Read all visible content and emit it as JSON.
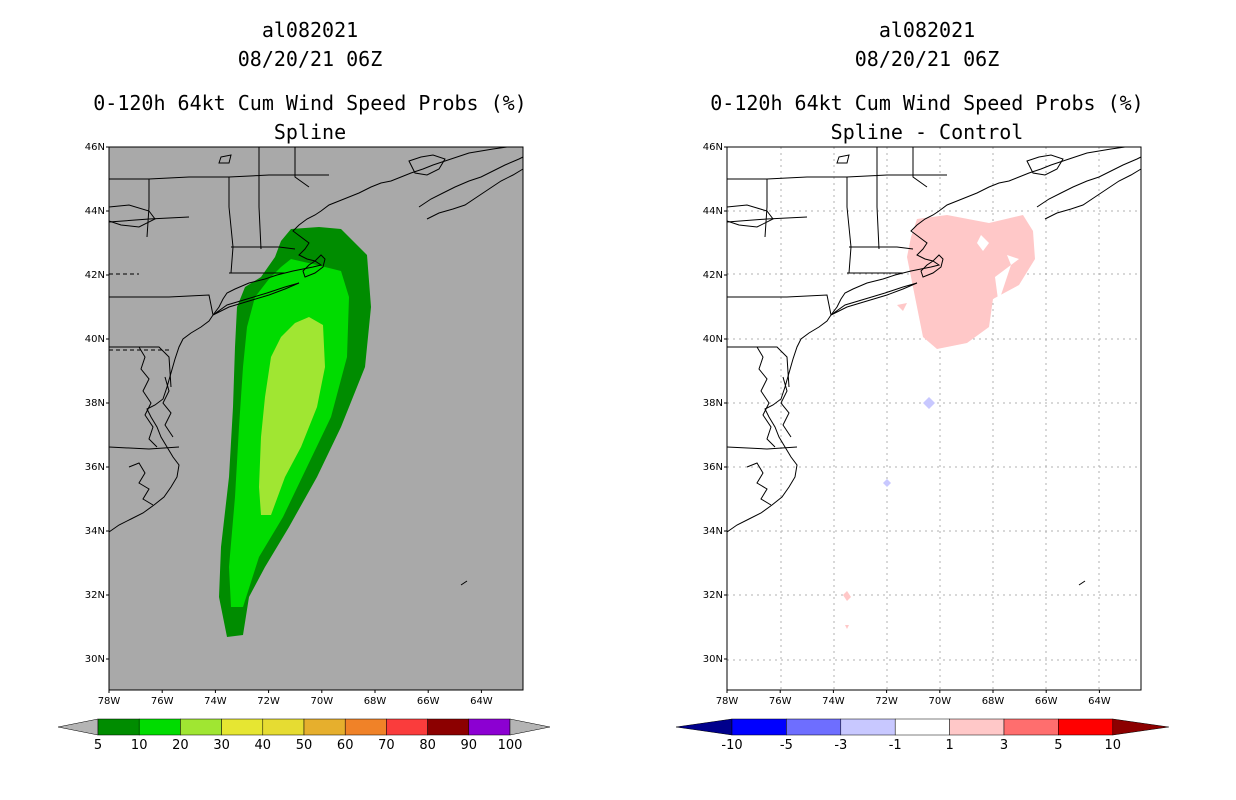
{
  "left_panel": {
    "storm_id": "al082021",
    "datetime": "08/20/21 06Z",
    "product": "0-120h 64kt Cum Wind Speed Probs (%)",
    "subtitle": "Spline"
  },
  "right_panel": {
    "storm_id": "al082021",
    "datetime": "08/20/21 06Z",
    "product": "0-120h 64kt Cum Wind Speed Probs (%)",
    "subtitle": "Spline - Control"
  },
  "axes": {
    "lat_labels": [
      "46N",
      "44N",
      "42N",
      "40N",
      "38N",
      "36N",
      "34N",
      "32N",
      "30N"
    ],
    "lon_labels": [
      "78W",
      "76W",
      "74W",
      "72W",
      "70W",
      "68W",
      "66W",
      "64W"
    ]
  },
  "colors": {
    "land_ocean_background": "#a9a9a9",
    "diff_background": "#ffffff",
    "coastline": "#000000"
  },
  "left_colorbar": {
    "labels": [
      "5",
      "10",
      "20",
      "30",
      "40",
      "50",
      "60",
      "70",
      "80",
      "90",
      "100"
    ],
    "colors": [
      "#b4b4b4",
      "#008c00",
      "#00dc00",
      "#a0e632",
      "#e6e632",
      "#e6dc32",
      "#e6af2d",
      "#f08228",
      "#fa3c3c",
      "#8c0000",
      "#8c00d2",
      "#b4b4b4"
    ]
  },
  "right_colorbar": {
    "labels": [
      "-10",
      "-5",
      "-3",
      "-1",
      "1",
      "3",
      "5",
      "10"
    ],
    "colors": [
      "#00008c",
      "#0000ff",
      "#6e6eff",
      "#c8c8ff",
      "#ffffff",
      "#ffc8c8",
      "#ff6e6e",
      "#ff0000",
      "#8c0000"
    ]
  },
  "left_contours": [
    {
      "level": "5-10",
      "color": "#008c00"
    },
    {
      "level": "10-20",
      "color": "#00dc00"
    },
    {
      "level": "20-30",
      "color": "#a0e632"
    }
  ],
  "right_contours": [
    {
      "level": "1-3",
      "color": "#ffc8c8"
    },
    {
      "level": "-3--1",
      "color": "#c8c8ff"
    }
  ]
}
